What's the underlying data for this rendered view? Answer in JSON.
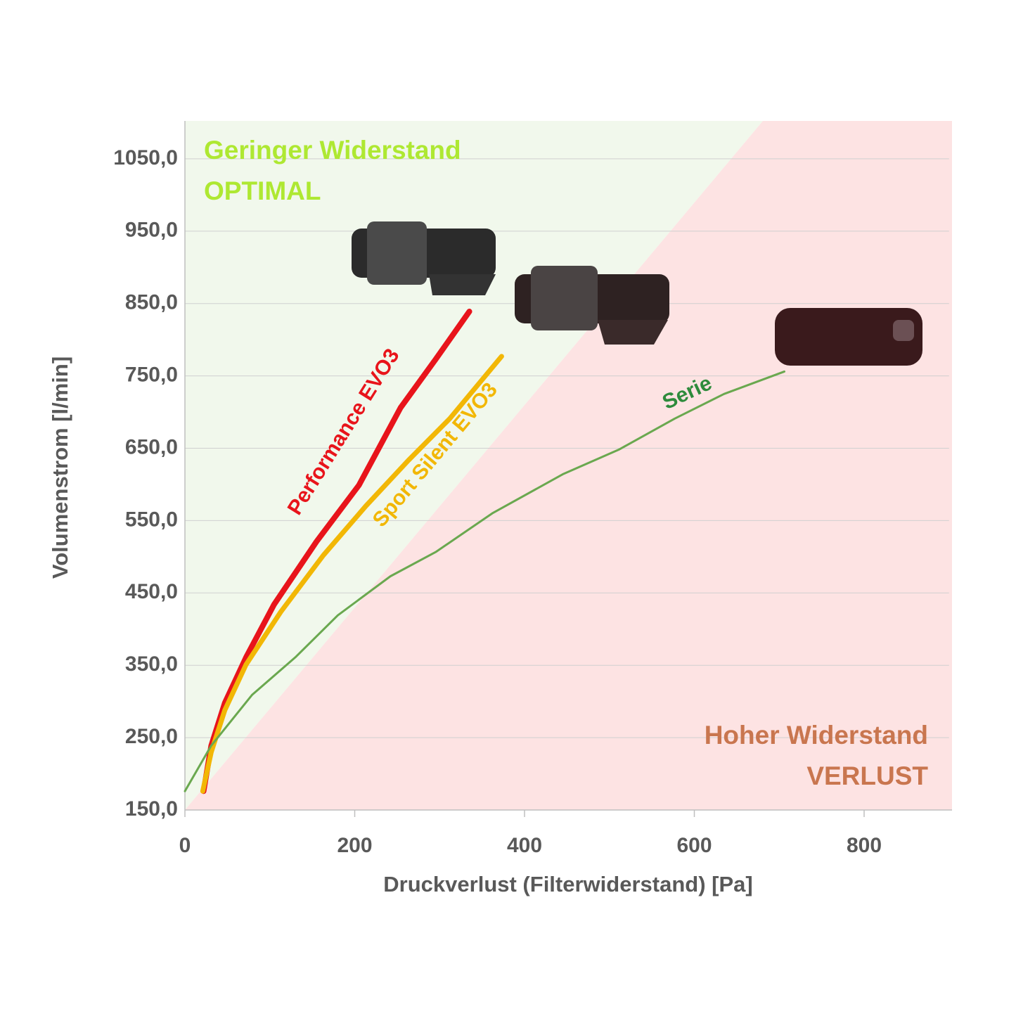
{
  "chart_data": {
    "type": "line",
    "x_label": "Druckverlust (Filterwiderstand) [Pa]",
    "y_label": "Volumenstrom [l/min]",
    "annotations": [
      "Geringer Widerstand",
      "OPTIMAL",
      "Hoher Widerstand",
      "VERLUST"
    ],
    "xlim": [
      0,
      900
    ],
    "ylim": [
      150,
      1100
    ],
    "xticks": [
      0,
      200,
      400,
      600,
      800
    ],
    "yticks": [
      {
        "value": 150,
        "label": "150,0"
      },
      {
        "value": 250,
        "label": "250,0"
      },
      {
        "value": 350,
        "label": "350,0"
      },
      {
        "value": 450,
        "label": "450,0"
      },
      {
        "value": 550,
        "label": "550,0"
      },
      {
        "value": 650,
        "label": "650,0"
      },
      {
        "value": 750,
        "label": "750,0"
      },
      {
        "value": 850,
        "label": "850,0"
      },
      {
        "value": 950,
        "label": "950,0"
      },
      {
        "value": 1050,
        "label": "1050,0"
      }
    ],
    "grid": true,
    "series": [
      {
        "name": "Performance EVO3",
        "color": "#e8141b",
        "x": [
          22,
          31,
          47,
          72,
          105,
          155,
          205,
          254,
          296,
          335
        ],
        "values": [
          176,
          239,
          298,
          361,
          434,
          521,
          599,
          706,
          774,
          839
        ]
      },
      {
        "name": "Sport Silent EVO3",
        "color": "#f2b705",
        "x": [
          21,
          31,
          47,
          72,
          113,
          163,
          213,
          263,
          312,
          373
        ],
        "values": [
          176,
          230,
          288,
          351,
          424,
          502,
          570,
          633,
          691,
          777
        ]
      },
      {
        "name": "Serie",
        "color": "#6aa84f",
        "x": [
          0,
          31,
          79,
          130,
          180,
          242,
          296,
          362,
          445,
          511,
          577,
          635,
          706
        ],
        "values": [
          176,
          239,
          309,
          361,
          419,
          473,
          507,
          560,
          614,
          648,
          691,
          725,
          756
        ]
      }
    ]
  }
}
